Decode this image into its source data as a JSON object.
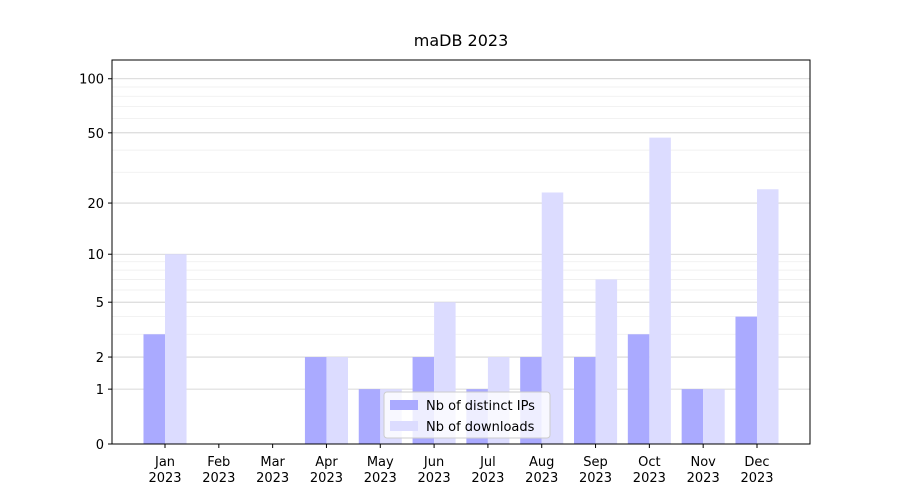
{
  "chart_data": {
    "type": "bar",
    "title": "maDB 2023",
    "categories": [
      "Jan\n2023",
      "Feb\n2023",
      "Mar\n2023",
      "Apr\n2023",
      "May\n2023",
      "Jun\n2023",
      "Jul\n2023",
      "Aug\n2023",
      "Sep\n2023",
      "Oct\n2023",
      "Nov\n2023",
      "Dec\n2023"
    ],
    "series": [
      {
        "name": "Nb of distinct IPs",
        "color": "#aaaaff",
        "values": [
          3,
          0,
          0,
          2,
          1,
          2,
          1,
          2,
          2,
          3,
          1,
          4
        ]
      },
      {
        "name": "Nb of downloads",
        "color": "#dcdcff",
        "values": [
          10,
          0,
          0,
          2,
          1,
          5,
          2,
          23,
          7,
          47,
          1,
          24
        ]
      }
    ],
    "scale": "log1p",
    "ylim": [
      0,
      127
    ],
    "yticks": [
      0,
      1,
      2,
      5,
      10,
      20,
      50,
      100
    ],
    "yminorticks": [
      3,
      4,
      6,
      7,
      8,
      9,
      30,
      40,
      60,
      70,
      80,
      90
    ],
    "grid": true,
    "legend": "lower center"
  }
}
